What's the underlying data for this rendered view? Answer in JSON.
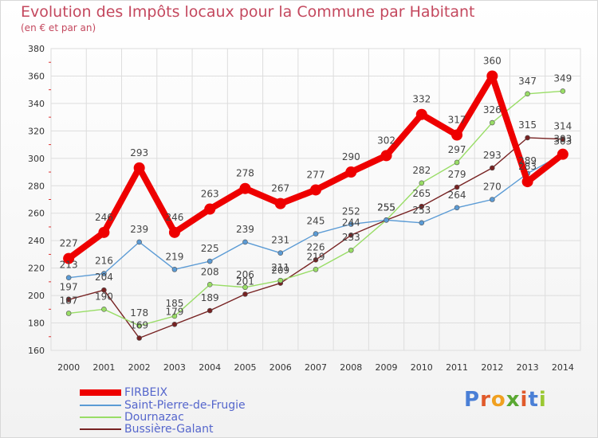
{
  "title": "Evolution des Impôts locaux pour la Commune par Habitant",
  "subtitle": "(en € et par an)",
  "logo": {
    "letters": [
      "P",
      "r",
      "o",
      "x",
      "i",
      "t",
      "i"
    ],
    "colors": [
      "#4a7fd6",
      "#e05a2b",
      "#f0a020",
      "#5aa832",
      "#e05a2b",
      "#4a7fd6",
      "#9ac832"
    ]
  },
  "chart_data": {
    "type": "line",
    "title": "Evolution des Impôts locaux pour la Commune par Habitant",
    "subtitle": "(en € et par an)",
    "xlabel": "",
    "ylabel": "",
    "x": [
      "2000",
      "2001",
      "2002",
      "2003",
      "2004",
      "2005",
      "2006",
      "2007",
      "2008",
      "2009",
      "2010",
      "2011",
      "2012",
      "2013",
      "2014"
    ],
    "ylim": [
      160,
      380
    ],
    "yticks": [
      "160",
      "180",
      "200",
      "220",
      "240",
      "260",
      "280",
      "300",
      "320",
      "340",
      "360",
      "380"
    ],
    "grid": true,
    "legend_position": "bottom-left",
    "series": [
      {
        "name": "FIRBEIX",
        "color": "#ee0000",
        "values": [
          227,
          246,
          293,
          246,
          263,
          278,
          267,
          277,
          290,
          302,
          332,
          317,
          360,
          283,
          303
        ],
        "labels": [
          "227",
          "246",
          "293",
          "246",
          "263",
          "278",
          "267",
          "277",
          "290",
          "302",
          "332",
          "317",
          "360",
          "283",
          "303"
        ]
      },
      {
        "name": "Saint-Pierre-de-Frugie",
        "color": "#5b9bd5",
        "values": [
          213,
          216,
          239,
          219,
          225,
          239,
          231,
          245,
          252,
          255,
          253,
          264,
          270,
          289,
          303
        ],
        "labels": [
          "213",
          "216",
          "239",
          "219",
          "225",
          "239",
          "231",
          "245",
          "252",
          "255",
          "253",
          "264",
          "270",
          "289",
          "303"
        ]
      },
      {
        "name": "Dournazac",
        "color": "#99dd66",
        "values": [
          187,
          190,
          178,
          185,
          208,
          206,
          211,
          219,
          233,
          255,
          282,
          297,
          326,
          347,
          349
        ],
        "labels": [
          "187",
          "190",
          "178",
          "185",
          "208",
          "206",
          "211",
          "219",
          "233",
          "255",
          "282",
          "297",
          "326",
          "347",
          "349"
        ]
      },
      {
        "name": "Bussière-Galant",
        "color": "#772222",
        "values": [
          197,
          204,
          169,
          179,
          189,
          201,
          209,
          226,
          244,
          255,
          265,
          279,
          293,
          315,
          314
        ],
        "labels": [
          "197",
          "204",
          "169",
          "179",
          "189",
          "201",
          "209",
          "226",
          "244",
          "255",
          "265",
          "279",
          "293",
          "315",
          "314"
        ]
      }
    ]
  }
}
